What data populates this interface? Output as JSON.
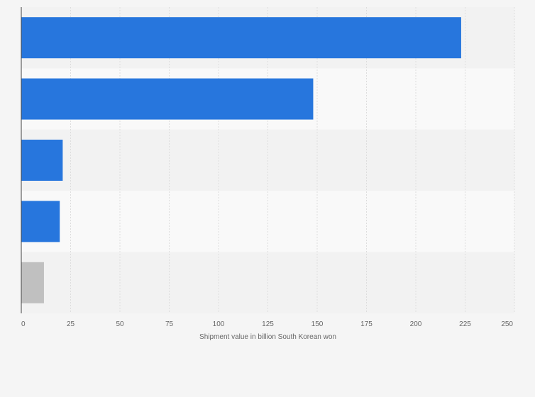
{
  "chart_data": {
    "type": "bar",
    "orientation": "horizontal",
    "categories": [
      "",
      "",
      "",
      "",
      ""
    ],
    "values": [
      223,
      148,
      21,
      19.5,
      11.5
    ],
    "xlabel": "Shipment value in billion South Korean won",
    "ylabel": "",
    "xlim": [
      0,
      250
    ],
    "ticks": [
      0,
      25,
      50,
      75,
      100,
      125,
      150,
      175,
      200,
      225,
      250
    ],
    "grid": true,
    "legend": "none",
    "colors": {
      "bar": "#2776dd",
      "bar_other": "#c0c0c0",
      "band_dark": "#f2f2f2",
      "band_light": "#f9f9f9",
      "grid": "#dddddd",
      "axis": "#444444"
    },
    "bar_color_keys": [
      "bar",
      "bar",
      "bar",
      "bar",
      "bar_other"
    ]
  }
}
